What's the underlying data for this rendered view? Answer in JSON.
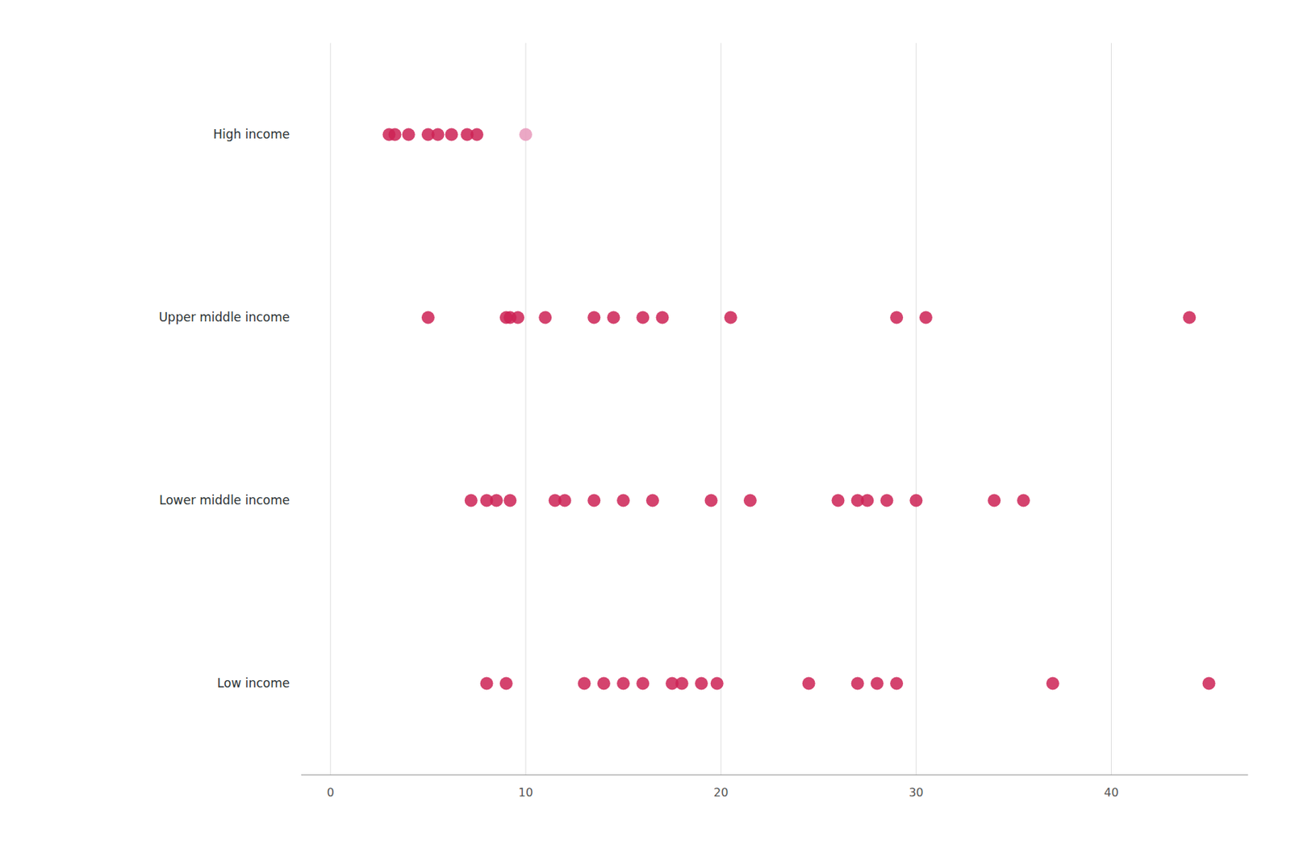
{
  "chart_data": {
    "type": "strip",
    "orientation": "horizontal",
    "categories": [
      "High income",
      "Upper middle income",
      "Lower middle income",
      "Low income"
    ],
    "values": [
      [
        3.0,
        3.3,
        4.0,
        5.0,
        5.5,
        6.2,
        7.0,
        7.5,
        10.0
      ],
      [
        5.0,
        9.0,
        9.2,
        9.6,
        11.0,
        13.5,
        14.5,
        16.0,
        17.0,
        20.5,
        29.0,
        30.5,
        44.0
      ],
      [
        7.2,
        8.0,
        8.5,
        9.2,
        11.5,
        12.0,
        13.5,
        15.0,
        16.5,
        19.5,
        21.5,
        26.0,
        27.0,
        27.5,
        28.5,
        30.0,
        34.0,
        35.5
      ],
      [
        8.0,
        9.0,
        13.0,
        14.0,
        15.0,
        16.0,
        17.5,
        18.0,
        19.0,
        19.8,
        24.5,
        27.0,
        28.0,
        29.0,
        37.0,
        45.0
      ]
    ],
    "colors": [
      [
        "#cc2255",
        "#cc2255",
        "#cc2255",
        "#cc2255",
        "#cc2255",
        "#cc2255",
        "#cc2255",
        "#cc2255",
        "#e899bb"
      ],
      [
        "#cc2255",
        "#cc2255",
        "#cc2255",
        "#cc2255",
        "#cc2255",
        "#cc2255",
        "#cc2255",
        "#cc2255",
        "#cc2255",
        "#cc2255",
        "#cc2255",
        "#cc2255",
        "#cc2255"
      ],
      [
        "#cc2255",
        "#cc2255",
        "#cc2255",
        "#cc2255",
        "#cc2255",
        "#cc2255",
        "#cc2255",
        "#cc2255",
        "#cc2255",
        "#cc2255",
        "#cc2255",
        "#cc2255",
        "#cc2255",
        "#cc2255",
        "#cc2255",
        "#cc2255",
        "#cc2255",
        "#cc2255"
      ],
      [
        "#cc2255",
        "#cc2255",
        "#cc2255",
        "#cc2255",
        "#cc2255",
        "#cc2255",
        "#cc2255",
        "#cc2255",
        "#cc2255",
        "#cc2255",
        "#cc2255",
        "#cc2255",
        "#cc2255",
        "#cc2255",
        "#cc2255",
        "#cc2255"
      ]
    ],
    "xlim": [
      -1.5,
      47
    ],
    "xticks": [
      0,
      10,
      20,
      30,
      40
    ],
    "grid": true
  }
}
